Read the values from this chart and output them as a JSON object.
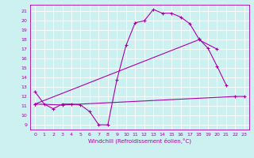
{
  "bg_color": "#cdf0f0",
  "grid_color": "#ffffff",
  "line_color": "#aa00aa",
  "xlabel": "Windchill (Refroidissement éolien,°C)",
  "xlim": [
    -0.5,
    23.5
  ],
  "ylim": [
    8.5,
    21.7
  ],
  "yticks": [
    9,
    10,
    11,
    12,
    13,
    14,
    15,
    16,
    17,
    18,
    19,
    20,
    21
  ],
  "xticks": [
    0,
    1,
    2,
    3,
    4,
    5,
    6,
    7,
    8,
    9,
    10,
    11,
    12,
    13,
    14,
    15,
    16,
    17,
    18,
    19,
    20,
    21,
    22,
    23
  ],
  "line1_x": [
    0,
    1,
    2,
    3,
    4,
    5,
    6,
    7,
    8,
    9,
    10,
    11,
    12,
    13,
    14,
    15,
    16,
    17,
    18,
    19,
    20,
    21
  ],
  "line1_y": [
    12.5,
    11.2,
    10.7,
    11.2,
    11.2,
    11.1,
    10.4,
    9.0,
    9.0,
    13.8,
    17.4,
    19.8,
    20.0,
    21.2,
    20.8,
    20.8,
    20.4,
    19.7,
    18.1,
    17.1,
    15.2,
    13.2
  ],
  "line2_x": [
    0,
    18,
    20
  ],
  "line2_y": [
    11.2,
    18.0,
    17.0
  ],
  "line3_x": [
    0,
    3,
    22,
    23
  ],
  "line3_y": [
    11.2,
    11.1,
    12.0,
    12.0
  ],
  "figsize": [
    3.2,
    2.0
  ],
  "dpi": 100
}
